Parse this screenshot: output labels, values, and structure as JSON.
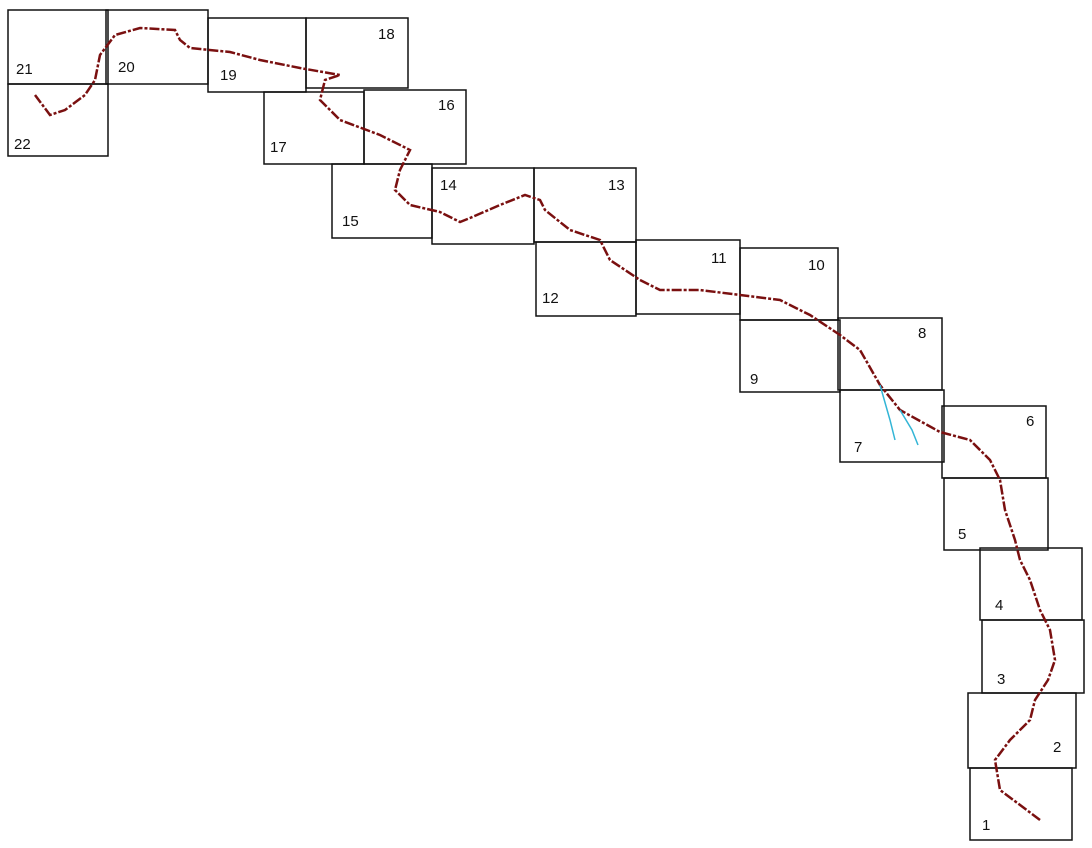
{
  "map": {
    "tiles": [
      "1",
      "2",
      "3",
      "4",
      "5",
      "6",
      "7",
      "8",
      "9",
      "10",
      "11",
      "12",
      "13",
      "14",
      "15",
      "16",
      "17",
      "18",
      "19",
      "20",
      "21",
      "22"
    ]
  }
}
